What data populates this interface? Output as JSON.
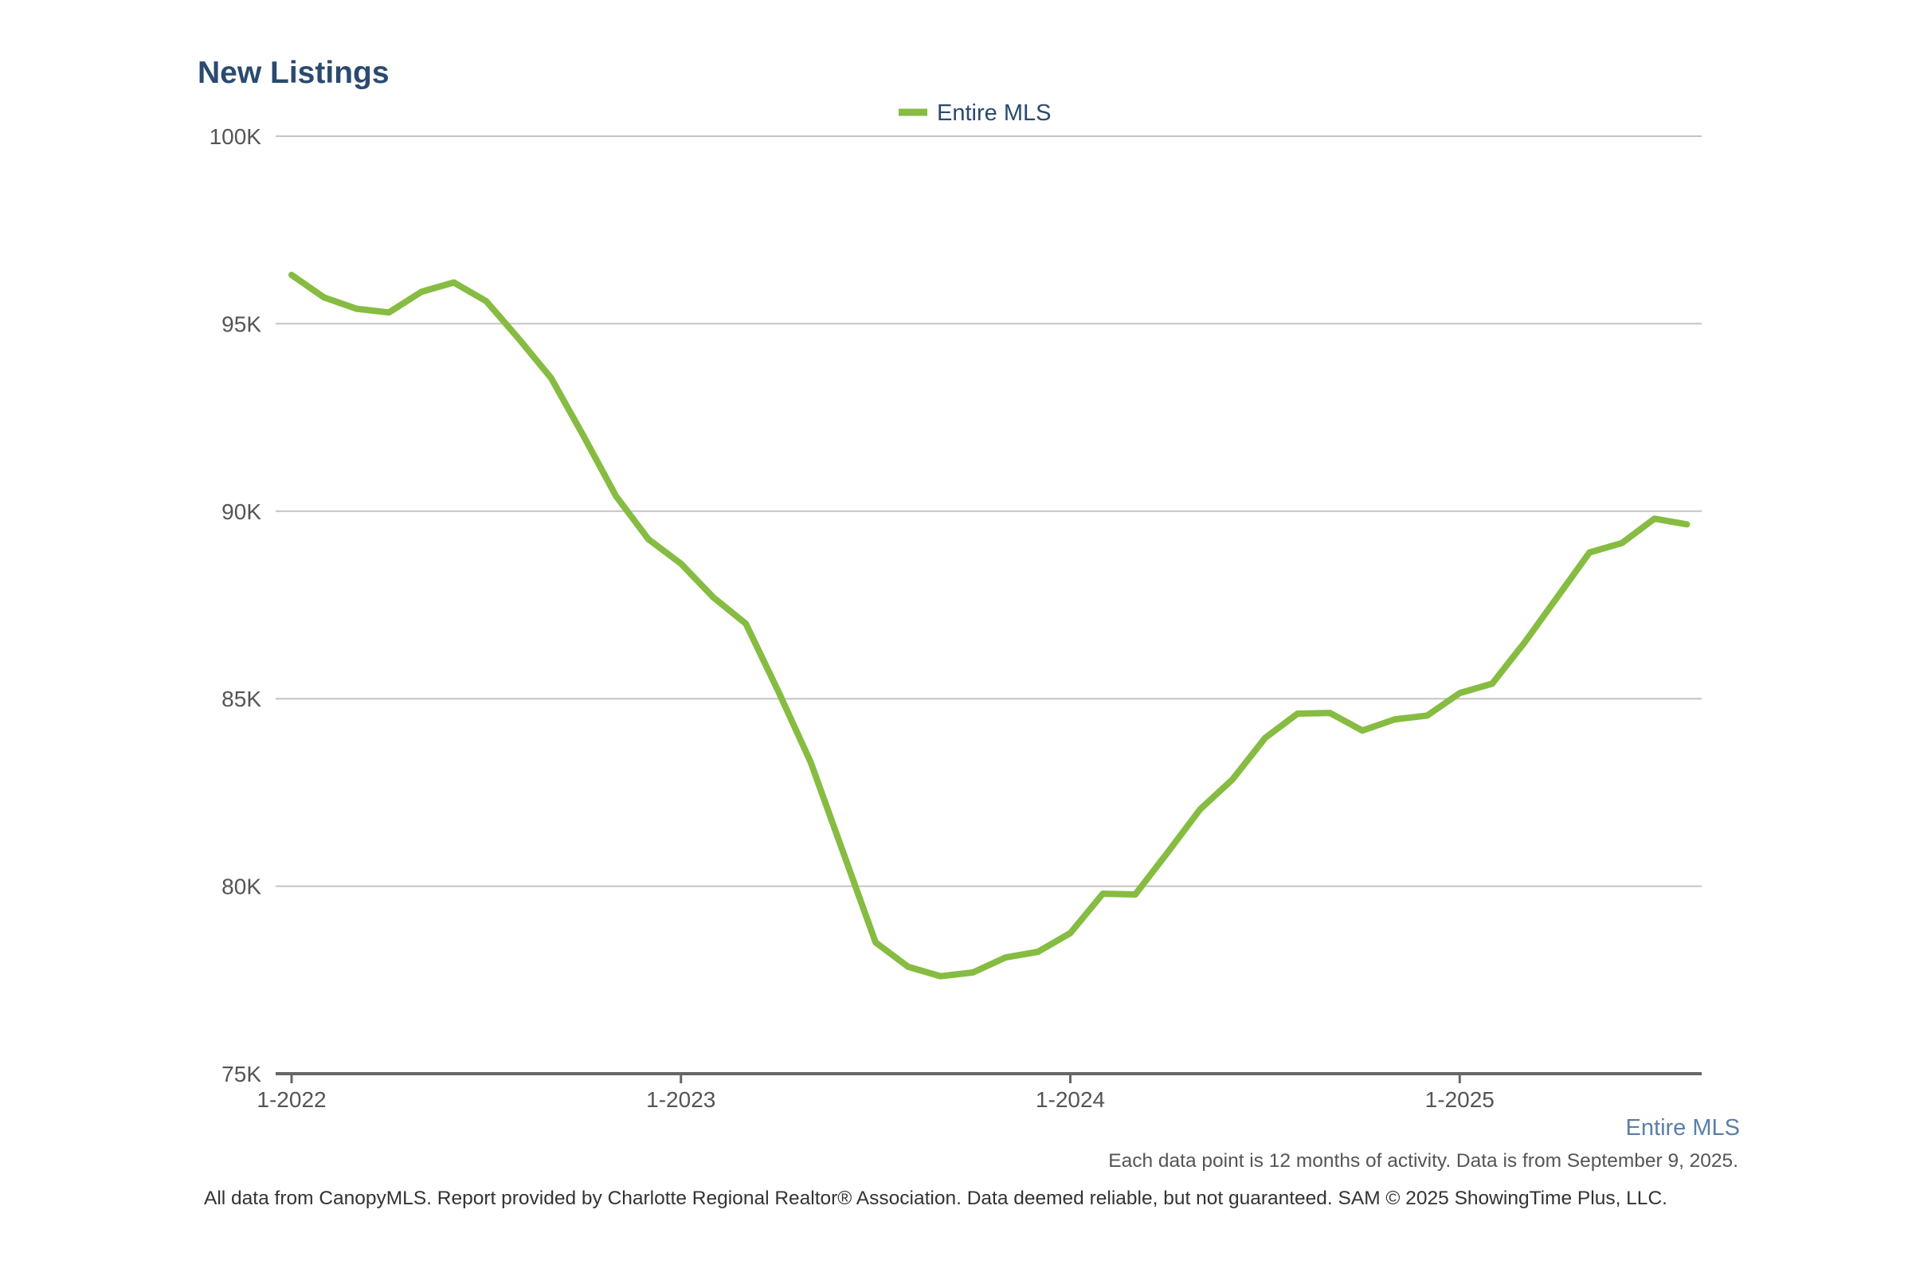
{
  "chart_data": {
    "type": "line",
    "title": "New Listings",
    "xlabel": "",
    "ylabel": "",
    "ylim": [
      75000,
      100000
    ],
    "y_ticks": [
      {
        "value": 75000,
        "label": "75K"
      },
      {
        "value": 80000,
        "label": "80K"
      },
      {
        "value": 85000,
        "label": "85K"
      },
      {
        "value": 90000,
        "label": "90K"
      },
      {
        "value": 95000,
        "label": "95K"
      },
      {
        "value": 100000,
        "label": "100K"
      }
    ],
    "x_ticks": [
      "1-2022",
      "1-2023",
      "1-2024",
      "1-2025"
    ],
    "grid": true,
    "legend_position": "top-center",
    "x": [
      "2022-01",
      "2022-02",
      "2022-03",
      "2022-04",
      "2022-05",
      "2022-06",
      "2022-07",
      "2022-08",
      "2022-09",
      "2022-10",
      "2022-11",
      "2022-12",
      "2023-01",
      "2023-02",
      "2023-03",
      "2023-04",
      "2023-05",
      "2023-06",
      "2023-07",
      "2023-08",
      "2023-09",
      "2023-10",
      "2023-11",
      "2023-12",
      "2024-01",
      "2024-02",
      "2024-03",
      "2024-04",
      "2024-05",
      "2024-06",
      "2024-07",
      "2024-08",
      "2024-09",
      "2024-10",
      "2024-11",
      "2024-12",
      "2025-01",
      "2025-02",
      "2025-03",
      "2025-04",
      "2025-05",
      "2025-06",
      "2025-07",
      "2025-08"
    ],
    "series": [
      {
        "name": "Entire MLS",
        "color": "#86bc41",
        "values": [
          96300,
          95700,
          95400,
          95300,
          95850,
          96100,
          95600,
          94600,
          93550,
          92000,
          90400,
          89250,
          88600,
          87700,
          87000,
          85200,
          83300,
          80900,
          78500,
          77850,
          77600,
          77700,
          78100,
          78250,
          78750,
          79800,
          79780,
          80900,
          82050,
          82850,
          83950,
          84600,
          84620,
          84150,
          84450,
          84550,
          85150,
          85400,
          86500,
          87700,
          88900,
          89150,
          89800,
          89650
        ]
      }
    ]
  },
  "legend": {
    "label": "Entire MLS",
    "color": "#86bc41"
  },
  "caption": {
    "series_label": "Entire MLS",
    "note": "Each data point is 12 months of activity. Data is from September 9, 2025.",
    "footer": "All data from CanopyMLS. Report provided by Charlotte Regional Realtor® Association. Data deemed reliable, but not guaranteed. SAM © 2025 ShowingTime Plus, LLC."
  }
}
